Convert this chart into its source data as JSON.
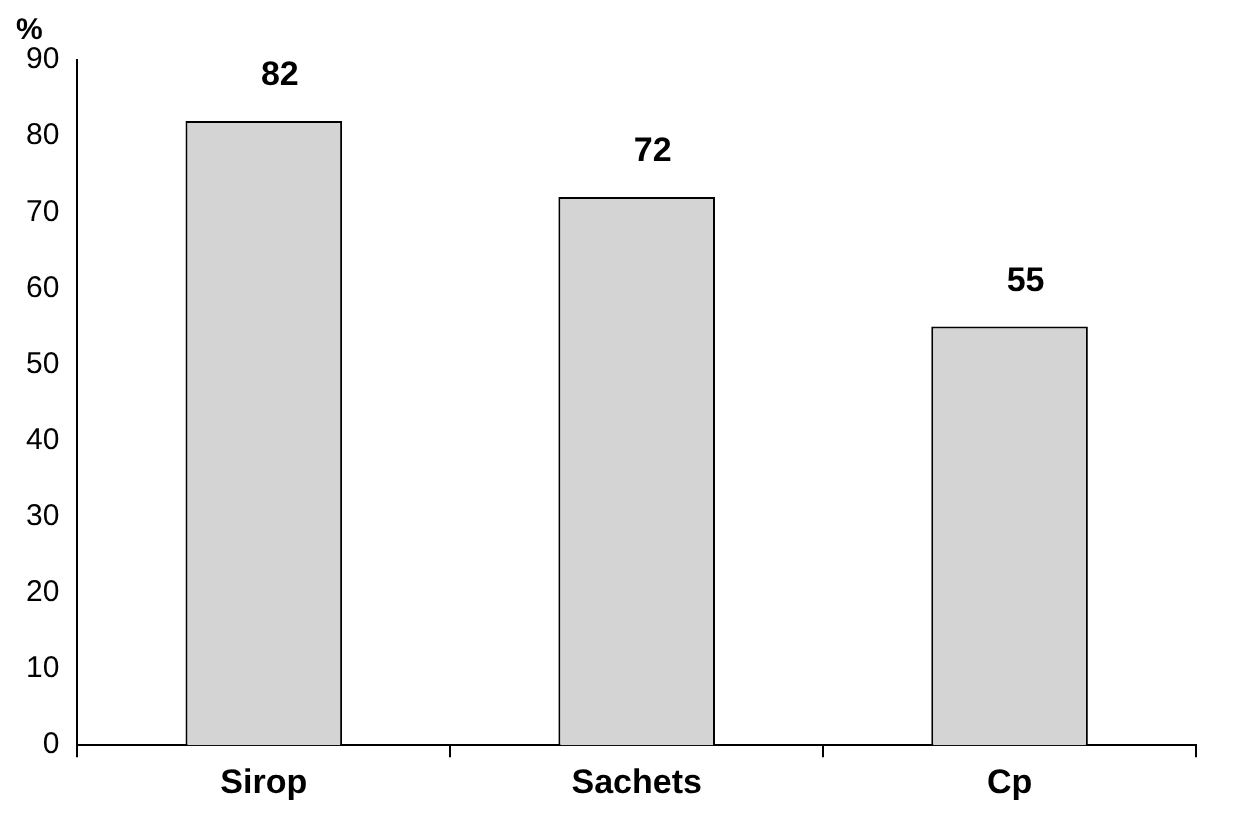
{
  "chart_data": {
    "type": "bar",
    "ylabel": "%",
    "categories": [
      "Sirop",
      "Sachets",
      "Cp"
    ],
    "values": [
      82,
      72,
      55
    ],
    "color": "#d4d4d4",
    "ylim": [
      0,
      90
    ],
    "yticks": [
      0,
      10,
      20,
      30,
      40,
      50,
      60,
      70,
      80,
      90
    ],
    "data_labels": true,
    "grid": false,
    "legend": false
  }
}
